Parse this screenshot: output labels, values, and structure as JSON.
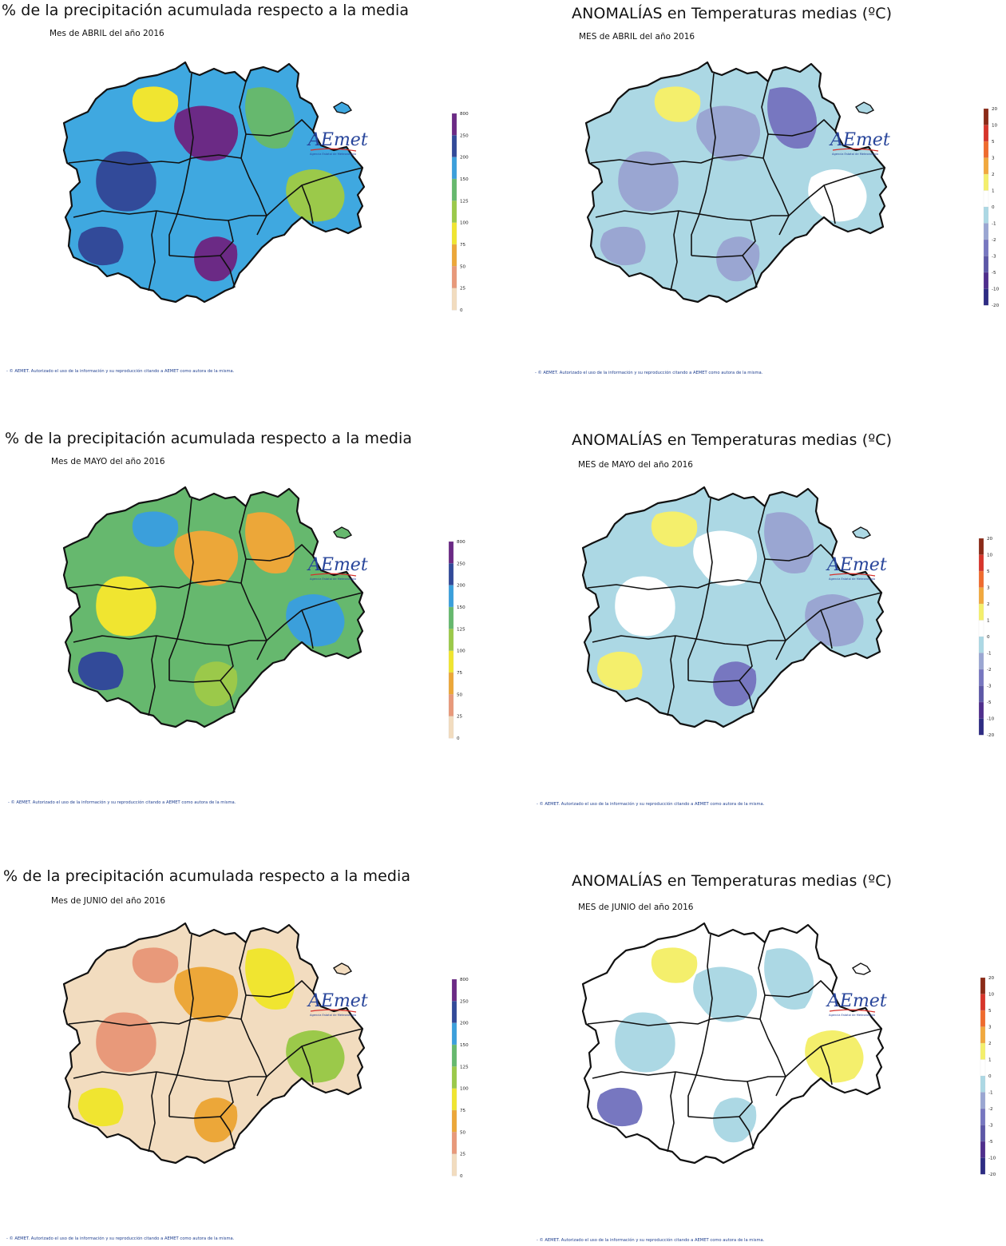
{
  "logo": {
    "brand": "AEmet",
    "subtitle": "Agencia Estatal de Meteorología"
  },
  "footer_text": "- © AEMET. Autorizado el uso de la información y su reproducción citando a AEMET como autora de la misma.",
  "legends": {
    "precip": {
      "labels": [
        "800",
        "250",
        "200",
        "150",
        "125",
        "100",
        "75",
        "50",
        "25",
        "0"
      ],
      "colors": [
        "#6b2a85",
        "#324a99",
        "#3b9fdb",
        "#66b86e",
        "#9bc94a",
        "#f0e530",
        "#eca739",
        "#e8997a",
        "#f2dcbf"
      ]
    },
    "temp": {
      "labels": [
        "20",
        "10",
        "5",
        "3",
        "2",
        "1",
        "0",
        "-1",
        "-2",
        "-3",
        "-5",
        "-10",
        "-20"
      ],
      "colors": [
        "#8b2b18",
        "#d7352b",
        "#ef6b2e",
        "#f1a83e",
        "#f4ef6c",
        "#ffffff",
        "#acd8e4",
        "#9aa6d2",
        "#7777c0",
        "#5d58a7",
        "#4f2f8d",
        "#2e2c83"
      ]
    }
  },
  "panels": [
    {
      "title": "% de la precipitación acumulada respecto a la media",
      "subtitle": "Mes de ABRIL del año 2016",
      "kind": "precip",
      "base_color": "#3fa8e0",
      "blobs": [
        {
          "color": "#324a99"
        },
        {
          "color": "#6b2a85"
        },
        {
          "color": "#66b86e"
        },
        {
          "color": "#9bc94a"
        },
        {
          "color": "#f0e530"
        },
        {
          "color": "#6b2a85"
        },
        {
          "color": "#324a99"
        }
      ]
    },
    {
      "title": "ANOMALÍAS en Temperaturas medias (ºC)",
      "subtitle": "MES de ABRIL del año 2016",
      "kind": "temp",
      "base_color": "#acd8e4",
      "blobs": [
        {
          "color": "#9aa6d2"
        },
        {
          "color": "#9aa6d2"
        },
        {
          "color": "#7777c0"
        },
        {
          "color": "#ffffff"
        },
        {
          "color": "#f4ef6c"
        },
        {
          "color": "#9aa6d2"
        },
        {
          "color": "#9aa6d2"
        }
      ]
    },
    {
      "title": "% de la precipitación acumulada respecto a la media",
      "subtitle": "Mes de MAYO del año 2016",
      "kind": "precip",
      "base_color": "#66b86e",
      "blobs": [
        {
          "color": "#f0e530"
        },
        {
          "color": "#eca739"
        },
        {
          "color": "#eca739"
        },
        {
          "color": "#3b9fdb"
        },
        {
          "color": "#3b9fdb"
        },
        {
          "color": "#9bc94a"
        },
        {
          "color": "#324a99"
        }
      ]
    },
    {
      "title": "ANOMALÍAS en Temperaturas medias (ºC)",
      "subtitle": "MES de MAYO del año 2016",
      "kind": "temp",
      "base_color": "#acd8e4",
      "blobs": [
        {
          "color": "#ffffff"
        },
        {
          "color": "#ffffff"
        },
        {
          "color": "#9aa6d2"
        },
        {
          "color": "#9aa6d2"
        },
        {
          "color": "#f4ef6c"
        },
        {
          "color": "#7777c0"
        },
        {
          "color": "#f4ef6c"
        }
      ]
    },
    {
      "title": "% de la precipitación acumulada respecto a la media",
      "subtitle": "Mes de JUNIO del año 2016",
      "kind": "precip",
      "base_color": "#f2dcbf",
      "blobs": [
        {
          "color": "#e8997a"
        },
        {
          "color": "#eca739"
        },
        {
          "color": "#f0e530"
        },
        {
          "color": "#9bc94a"
        },
        {
          "color": "#e8997a"
        },
        {
          "color": "#eca739"
        },
        {
          "color": "#f0e530"
        }
      ]
    },
    {
      "title": "ANOMALÍAS en Temperaturas medias (ºC)",
      "subtitle": "MES de JUNIO del año 2016",
      "kind": "temp",
      "base_color": "#ffffff",
      "blobs": [
        {
          "color": "#acd8e4"
        },
        {
          "color": "#acd8e4"
        },
        {
          "color": "#acd8e4"
        },
        {
          "color": "#f4ef6c"
        },
        {
          "color": "#f4ef6c"
        },
        {
          "color": "#acd8e4"
        },
        {
          "color": "#7777c0"
        }
      ]
    }
  ]
}
